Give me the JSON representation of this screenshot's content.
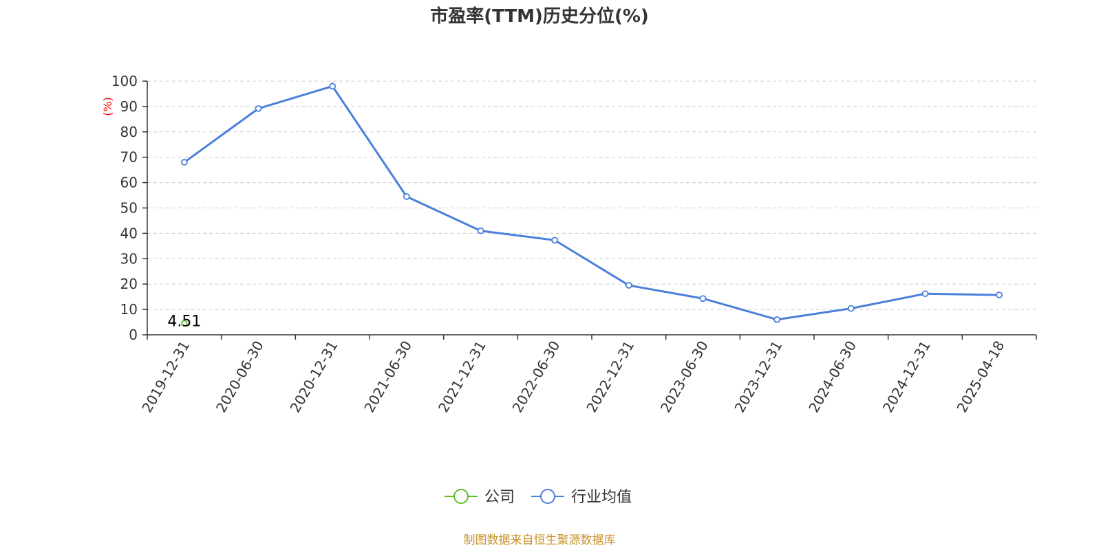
{
  "chart_data": {
    "type": "line",
    "title": "市盈率(TTM)历史分位(%)",
    "ylabel": "(%)",
    "xlabel": "",
    "ylim": [
      0,
      100
    ],
    "yticks": [
      0,
      10,
      20,
      30,
      40,
      50,
      60,
      70,
      80,
      90,
      100
    ],
    "grid": true,
    "legend_position": "bottom-center",
    "categories": [
      "2019-12-31",
      "2020-06-30",
      "2020-12-31",
      "2021-06-30",
      "2021-12-31",
      "2022-06-30",
      "2022-12-31",
      "2023-06-30",
      "2023-12-31",
      "2024-06-30",
      "2024-12-31",
      "2025-04-18"
    ],
    "series": [
      {
        "name": "公司",
        "color": "#5cc02b",
        "values": [
          4.51,
          null,
          null,
          null,
          null,
          null,
          null,
          null,
          null,
          null,
          null,
          null
        ],
        "data_labels": [
          "4.51"
        ]
      },
      {
        "name": "行业均值",
        "color": "#4b7fdc",
        "values": [
          68,
          89.2,
          98,
          54.5,
          41,
          37.3,
          19.5,
          14.3,
          6,
          10.4,
          16.2,
          15.7
        ]
      }
    ]
  },
  "source_note": "制图数据来自恒生聚源数据库",
  "colors": {
    "title": "#333333",
    "axis": "#333333",
    "grid": "#cccccc",
    "unit_label": "#ff0000",
    "source_note": "#c8922b"
  }
}
